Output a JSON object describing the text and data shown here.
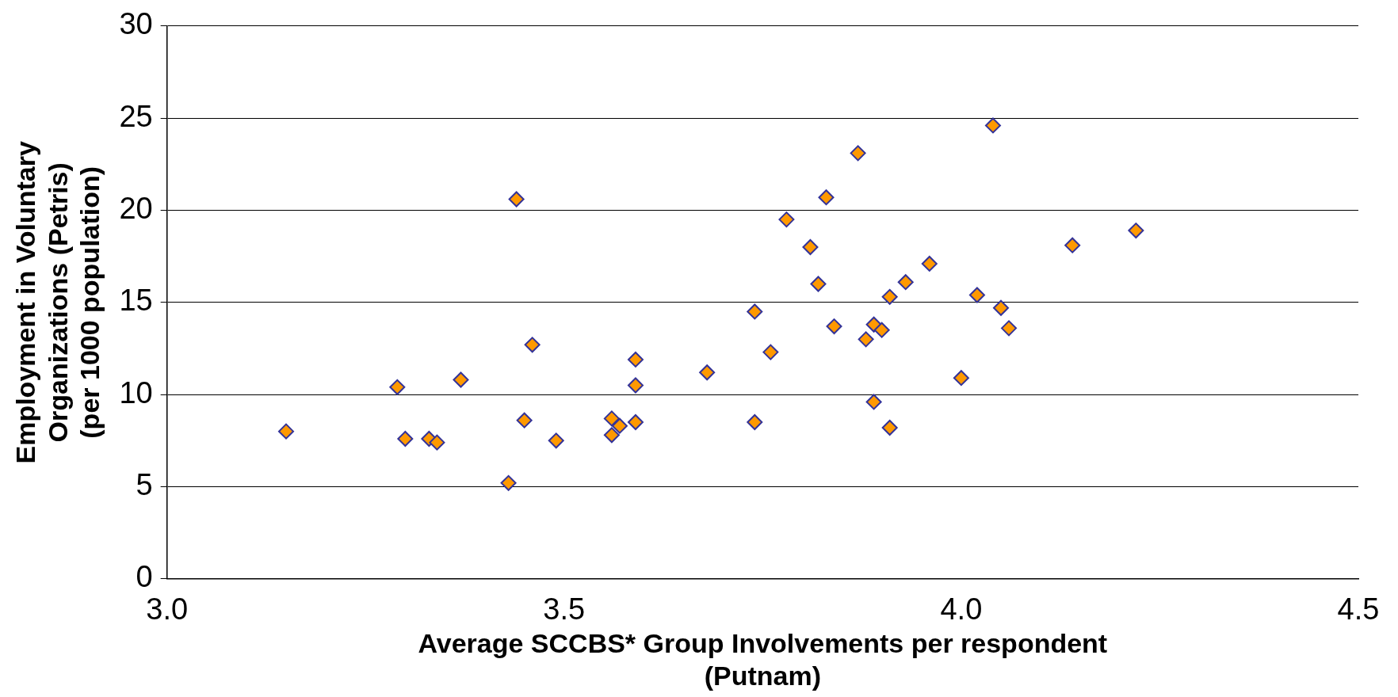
{
  "chart_data": {
    "type": "scatter",
    "xlabel": "Average SCCBS* Group Involvements per respondent\n(Putnam)",
    "ylabel": "Employment in Voluntary\nOrganizations (Petris)\n(per 1000 population)",
    "xlim": [
      3.0,
      4.5
    ],
    "xticks": [
      {
        "value": 3.0,
        "label": "3.0"
      },
      {
        "value": 3.5,
        "label": "3.5"
      },
      {
        "value": 4.0,
        "label": "4.0"
      },
      {
        "value": 4.5,
        "label": "4.5"
      }
    ],
    "ylim": [
      0,
      30
    ],
    "yticks": [
      0,
      5,
      10,
      15,
      20,
      25,
      30
    ],
    "grid": "y",
    "marker": "diamond",
    "legend": false,
    "series": [
      {
        "color": "#ff9900",
        "x": [
          3.15,
          3.29,
          3.3,
          3.33,
          3.34,
          3.37,
          3.43,
          3.44,
          3.45,
          3.46,
          3.49,
          3.56,
          3.56,
          3.57,
          3.59,
          3.59,
          3.59,
          3.68,
          3.74,
          3.74,
          3.76,
          3.78,
          3.81,
          3.82,
          3.83,
          3.84,
          3.87,
          3.88,
          3.89,
          3.89,
          3.9,
          3.91,
          3.91,
          3.93,
          3.96,
          4.0,
          4.02,
          4.04,
          4.05,
          4.06,
          4.14,
          4.22
        ],
        "values": [
          8.0,
          10.4,
          7.6,
          7.6,
          7.4,
          10.8,
          5.2,
          20.6,
          8.6,
          12.7,
          7.5,
          8.7,
          7.8,
          8.3,
          11.9,
          8.5,
          10.5,
          11.2,
          14.5,
          8.5,
          12.3,
          19.5,
          18.0,
          16.0,
          20.7,
          13.7,
          23.1,
          13.0,
          13.8,
          9.6,
          13.5,
          15.3,
          8.2,
          16.1,
          17.1,
          10.9,
          15.4,
          24.6,
          14.7,
          13.6,
          18.1,
          18.9
        ]
      }
    ]
  }
}
